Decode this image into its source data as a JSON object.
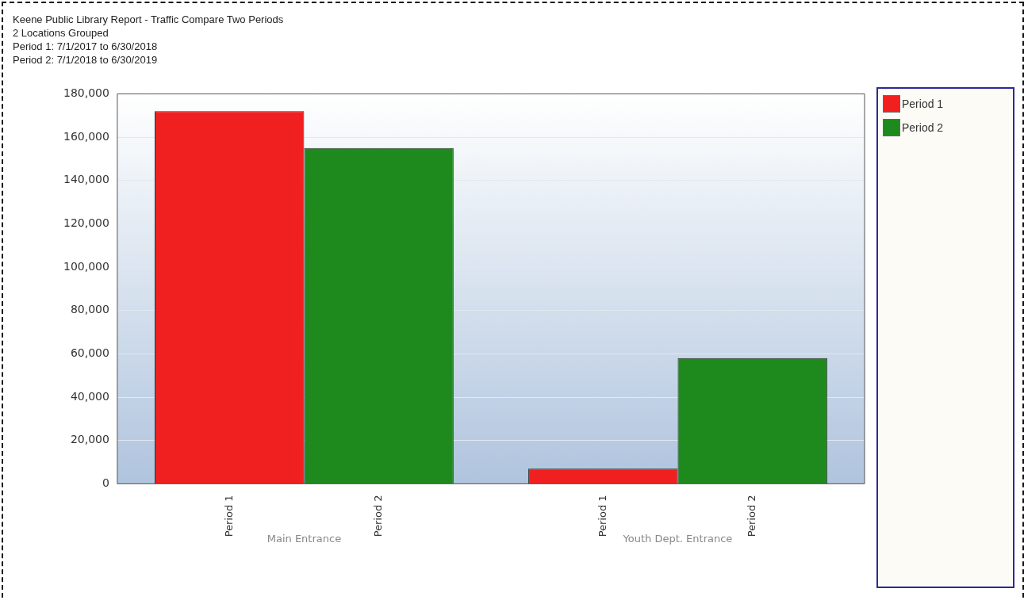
{
  "chart_data": {
    "type": "bar",
    "title": "Keene Public Library Report - Traffic Compare Two Periods",
    "subtitle": "2 Locations Grouped",
    "annotations": [
      "Period 1: 7/1/2017 to 6/30/2018",
      "Period 2: 7/1/2018 to 6/30/2019"
    ],
    "categories": [
      "Main Entrance",
      "Youth Dept. Entrance"
    ],
    "series": [
      {
        "name": "Period 1",
        "color": "#f02020",
        "values": [
          172000,
          7000
        ]
      },
      {
        "name": "Period 2",
        "color": "#1e8a1e",
        "values": [
          155000,
          58000
        ]
      }
    ],
    "ylim": [
      0,
      180000
    ],
    "yticks": [
      0,
      {
        "value": 20000,
        "label": "20,000"
      },
      {
        "value": 40000,
        "label": "40,000"
      },
      {
        "value": 60000,
        "label": "60,000"
      },
      {
        "value": 80000,
        "label": "80,000"
      },
      {
        "value": 100000,
        "label": "100,000"
      },
      {
        "value": 120000,
        "label": "120,000"
      },
      {
        "value": 140000,
        "label": "140,000"
      },
      {
        "value": 160000,
        "label": "160,000"
      },
      {
        "value": 180000,
        "label": "180,000"
      }
    ],
    "grid": "y",
    "legend": "right"
  }
}
